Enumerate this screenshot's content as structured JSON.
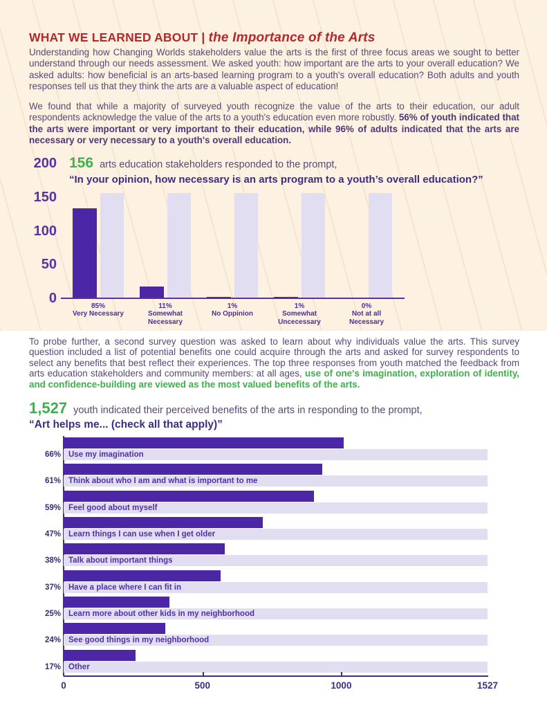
{
  "document": {
    "title_prefix": "WHAT WE LEARNED ABOUT | ",
    "title_emphasis": "the Importance of the Arts",
    "paragraphs": {
      "p1": "Understanding how Changing Worlds stakeholders value the arts is the first of three focus areas we sought to better understand through our needs assessment. We asked youth: how important are the arts to your overall education?  We asked adults:  how beneficial is an arts-based learning program to a youth's overall education?  Both adults and youth responses tell us that they think the arts are a valuable aspect of education!",
      "p2_normal": "We found that while a majority of surveyed youth recognize the value of the arts to their education, our adult respondents acknowledge the value of the arts to a youth's education even more robustly. ",
      "p2_bold": "56% of youth indicated that the arts were important or very important to their education,  while 96% of adults indicated that the arts are necessary or very necessary to a youth's overall education.",
      "p3_normal": "To probe further, a second survey question was asked to learn about why individuals value the arts.  This survey question included a list of potential benefits one could acquire through the arts and asked for survey respondents to select any benefits that best reflect their experiences.  The top three responses from youth matched the feedback from arts education stakeholders and community members: at all ages, ",
      "p3_green": "use of one's imagination, exploration of identity, and confidence-building are viewed as the most valued benefits of the arts."
    }
  },
  "colors": {
    "page_top_background": "#fdf2e1",
    "page_bottom_background": "#ffffff",
    "bar_dark_purple": "#4b27a5",
    "bar_light_lavender": "#e2def2",
    "title_red": "#b3282d",
    "body_purple": "#5a4775",
    "deep_purple": "#3e2c7e",
    "axis_purple": "#5c2fa4",
    "accent_green": "#3cb04a"
  },
  "chart_data": [
    {
      "type": "bar",
      "header": {
        "count": "156",
        "intro": " arts education stakeholders responded to the prompt,",
        "prompt": "“In your opinion, how necessary is an arts program to a youth’s overall education?”"
      },
      "title": "In your opinion, how necessary is an arts program to a youth's overall education?",
      "total_respondents": 156,
      "background_bar_value": 156,
      "ylim": [
        0,
        200
      ],
      "yticks": [
        200,
        150,
        100,
        50,
        0
      ],
      "categories": [
        "Very Necessary",
        "Somewhat Necessary",
        "No Oppinion",
        "Somewhat Uncecessary",
        "Not at all Necessary"
      ],
      "category_label_lines": [
        [
          "Very Necessary"
        ],
        [
          "Somewhat",
          "Necessary"
        ],
        [
          "No Oppinion"
        ],
        [
          "Somewhat",
          "Uncecessary"
        ],
        [
          "Not at all",
          "Necessary"
        ]
      ],
      "percent_labels": [
        "85%",
        "11%",
        "1%",
        "1%",
        "0%"
      ],
      "values": [
        133,
        17,
        2,
        2,
        0
      ]
    },
    {
      "type": "bar-horizontal",
      "header": {
        "count": "1,527",
        "intro": " youth indicated their perceived benefits of the arts in responding to the prompt,",
        "prompt": "“Art helps me... (check all that apply)”"
      },
      "title": "Art helps me... (check all that apply)",
      "total_respondents": 1527,
      "xlim": [
        0,
        1527
      ],
      "xticks": [
        0,
        500,
        1000,
        1527
      ],
      "categories": [
        "Use my imagination",
        "Think about who I am and what is important to me",
        "Feel good about myself",
        "Learn things I can use when I get older",
        "Talk about important things",
        "Have a place where I can fit in",
        "Learn more about other kids in my neighborhood",
        "See good things in my neighborhood",
        "Other"
      ],
      "percent_labels": [
        "66%",
        "61%",
        "59%",
        "47%",
        "38%",
        "37%",
        "25%",
        "24%",
        "17%"
      ],
      "values": [
        1008,
        931,
        901,
        718,
        580,
        565,
        382,
        366,
        260
      ]
    }
  ]
}
